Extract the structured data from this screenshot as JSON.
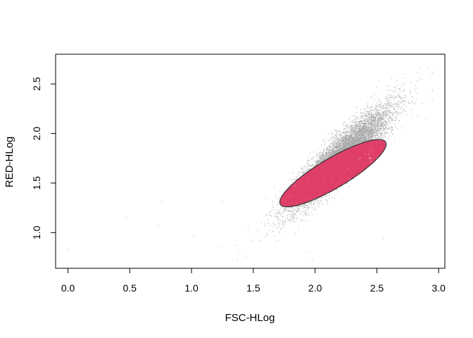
{
  "chart_data": {
    "type": "scatter",
    "title": "",
    "xlabel": "FSC-HLog",
    "ylabel": "RED-HLog",
    "xlim": [
      -0.1,
      3.05
    ],
    "ylim": [
      0.64,
      2.8
    ],
    "x_ticks": [
      0.0,
      0.5,
      1.0,
      1.5,
      2.0,
      2.5,
      3.0
    ],
    "x_tick_labels": [
      "0.0",
      "0.5",
      "1.0",
      "1.5",
      "2.0",
      "2.5",
      "3.0"
    ],
    "y_ticks": [
      1.0,
      1.5,
      2.0,
      2.5
    ],
    "y_tick_labels": [
      "1.0",
      "1.5",
      "2.0",
      "2.5"
    ],
    "grid": false,
    "legend": "none",
    "series": [
      {
        "role": "all events",
        "color": "#a6a6a6",
        "point_count": 10000,
        "center": [
          2.2,
          1.75
        ],
        "sd": [
          0.2,
          0.25
        ],
        "correlation": 0.9
      },
      {
        "role": "events inside gate",
        "color": "#df3f68",
        "point_count": 7000
      }
    ],
    "outliers": [
      [
        0.0,
        0.83
      ],
      [
        0.47,
        1.15
      ],
      [
        0.73,
        1.07
      ],
      [
        0.76,
        1.31
      ],
      [
        1.02,
        0.97
      ],
      [
        1.22,
        0.86
      ],
      [
        1.25,
        1.31
      ],
      [
        1.36,
        0.87
      ],
      [
        1.38,
        0.79
      ],
      [
        1.44,
        0.76
      ],
      [
        1.46,
        1.06
      ],
      [
        1.61,
        0.98
      ],
      [
        1.64,
        1.21
      ],
      [
        1.67,
        1.45
      ],
      [
        1.7,
        0.92
      ],
      [
        1.75,
        1.39
      ],
      [
        1.79,
        1.53
      ],
      [
        1.82,
        1.6
      ],
      [
        1.93,
        0.8
      ],
      [
        1.98,
        0.73
      ],
      [
        2.85,
        2.67
      ],
      [
        2.91,
        2.67
      ],
      [
        2.71,
        2.5
      ],
      [
        2.81,
        2.44
      ],
      [
        2.6,
        2.48
      ],
      [
        2.52,
        2.53
      ],
      [
        2.95,
        2.33
      ],
      [
        2.9,
        2.15
      ],
      [
        2.55,
        0.94
      ]
    ],
    "gate_ellipse": {
      "center": [
        2.145,
        1.6
      ],
      "semi_major": 0.53,
      "semi_minor": 0.14,
      "slope": 0.76,
      "color": "#333333"
    }
  }
}
